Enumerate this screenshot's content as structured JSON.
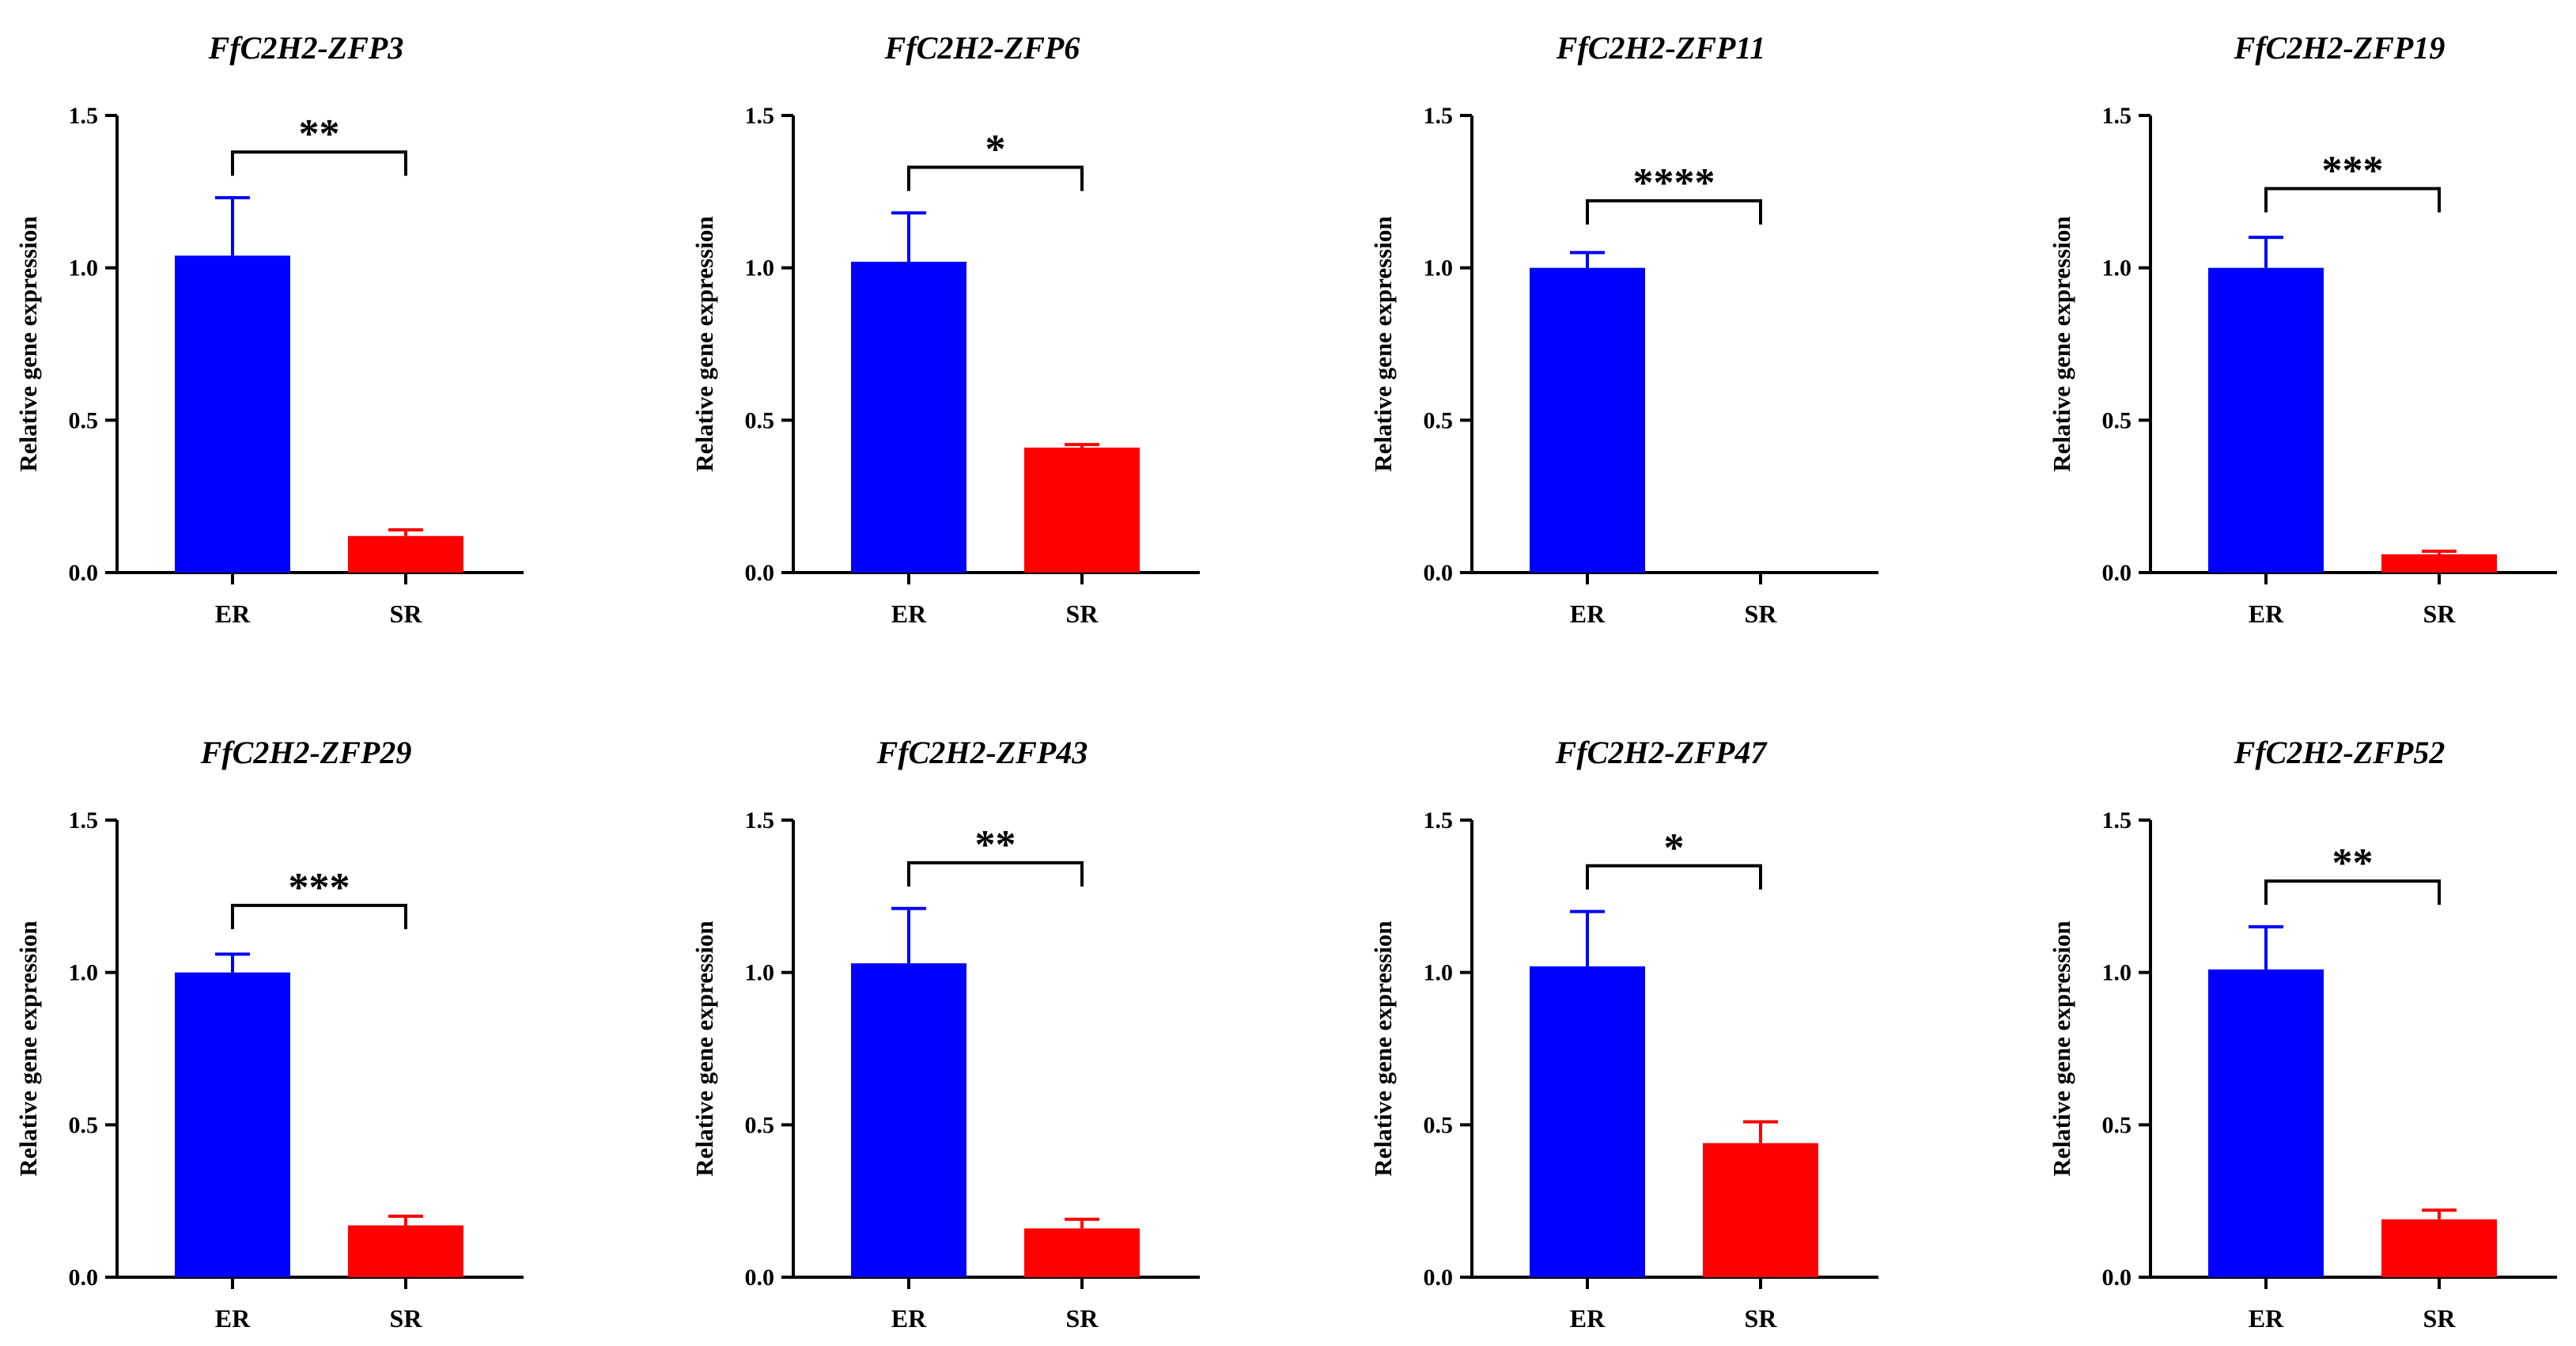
{
  "figure": {
    "colors": {
      "ER": "#0000ff",
      "SR": "#ff0000",
      "axis": "#000000"
    }
  },
  "chart_data": [
    {
      "type": "bar",
      "title": "FfC2H2-ZFP3",
      "categories": [
        "ER",
        "SR"
      ],
      "values": [
        1.04,
        0.12
      ],
      "errors": [
        0.19,
        0.02
      ],
      "significance": "**",
      "bracket_y": 1.38,
      "xlabel": "",
      "ylabel": "Relative gene expression",
      "ylim": [
        0,
        1.5
      ],
      "yticks": [
        "0.0",
        "0.5",
        "1.0",
        "1.5"
      ]
    },
    {
      "type": "bar",
      "title": "FfC2H2-ZFP6",
      "categories": [
        "ER",
        "SR"
      ],
      "values": [
        1.02,
        0.41
      ],
      "errors": [
        0.16,
        0.01
      ],
      "significance": "*",
      "bracket_y": 1.33,
      "xlabel": "",
      "ylabel": "Relative gene expression",
      "ylim": [
        0,
        1.5
      ],
      "yticks": [
        "0.0",
        "0.5",
        "1.0",
        "1.5"
      ]
    },
    {
      "type": "bar",
      "title": "FfC2H2-ZFP11",
      "categories": [
        "ER",
        "SR"
      ],
      "values": [
        1.0,
        0.0
      ],
      "errors": [
        0.05,
        0.0
      ],
      "significance": "****",
      "bracket_y": 1.22,
      "xlabel": "",
      "ylabel": "Relative gene expression",
      "ylim": [
        0,
        1.5
      ],
      "yticks": [
        "0.0",
        "0.5",
        "1.0",
        "1.5"
      ]
    },
    {
      "type": "bar",
      "title": "FfC2H2-ZFP19",
      "categories": [
        "ER",
        "SR"
      ],
      "values": [
        1.0,
        0.06
      ],
      "errors": [
        0.1,
        0.01
      ],
      "significance": "***",
      "bracket_y": 1.26,
      "xlabel": "",
      "ylabel": "Relative gene expression",
      "ylim": [
        0,
        1.5
      ],
      "yticks": [
        "0.0",
        "0.5",
        "1.0",
        "1.5"
      ]
    },
    {
      "type": "bar",
      "title": "FfC2H2-ZFP29",
      "categories": [
        "ER",
        "SR"
      ],
      "values": [
        1.0,
        0.17
      ],
      "errors": [
        0.06,
        0.03
      ],
      "significance": "***",
      "bracket_y": 1.22,
      "xlabel": "",
      "ylabel": "Relative gene expression",
      "ylim": [
        0,
        1.5
      ],
      "yticks": [
        "0.0",
        "0.5",
        "1.0",
        "1.5"
      ]
    },
    {
      "type": "bar",
      "title": "FfC2H2-ZFP43",
      "categories": [
        "ER",
        "SR"
      ],
      "values": [
        1.03,
        0.16
      ],
      "errors": [
        0.18,
        0.03
      ],
      "significance": "**",
      "bracket_y": 1.36,
      "xlabel": "",
      "ylabel": "Relative gene expression",
      "ylim": [
        0,
        1.5
      ],
      "yticks": [
        "0.0",
        "0.5",
        "1.0",
        "1.5"
      ]
    },
    {
      "type": "bar",
      "title": "FfC2H2-ZFP47",
      "categories": [
        "ER",
        "SR"
      ],
      "values": [
        1.02,
        0.44
      ],
      "errors": [
        0.18,
        0.07
      ],
      "significance": "*",
      "bracket_y": 1.35,
      "xlabel": "",
      "ylabel": "Relative gene expression",
      "ylim": [
        0,
        1.5
      ],
      "yticks": [
        "0.0",
        "0.5",
        "1.0",
        "1.5"
      ]
    },
    {
      "type": "bar",
      "title": "FfC2H2-ZFP52",
      "categories": [
        "ER",
        "SR"
      ],
      "values": [
        1.01,
        0.19
      ],
      "errors": [
        0.14,
        0.03
      ],
      "significance": "**",
      "bracket_y": 1.3,
      "xlabel": "",
      "ylabel": "Relative gene expression",
      "ylim": [
        0,
        1.5
      ],
      "yticks": [
        "0.0",
        "0.5",
        "1.0",
        "1.5"
      ]
    }
  ]
}
